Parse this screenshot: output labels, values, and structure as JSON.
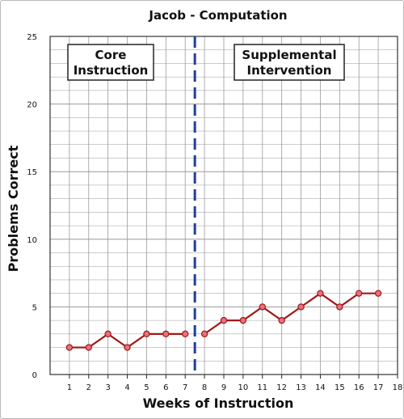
{
  "chart_data": {
    "type": "line",
    "title": "Jacob - Computation",
    "xlabel": "Weeks of Instruction",
    "ylabel": "Problems Correct",
    "xlim": [
      0,
      18
    ],
    "ylim": [
      0,
      25
    ],
    "x_ticks": [
      1,
      2,
      3,
      4,
      5,
      6,
      7,
      8,
      9,
      10,
      11,
      12,
      13,
      14,
      15,
      16,
      17,
      18
    ],
    "y_ticks": [
      0,
      5,
      10,
      15,
      20,
      25
    ],
    "grid": true,
    "phase_line_x": 7.5,
    "phases": [
      {
        "label_lines": [
          "Core",
          "Instruction"
        ],
        "x": [
          1,
          2,
          3,
          4,
          5,
          6,
          7
        ],
        "values": [
          2,
          2,
          3,
          2,
          3,
          3,
          3
        ]
      },
      {
        "label_lines": [
          "Supplemental",
          "Intervention"
        ],
        "x": [
          8,
          9,
          10,
          11,
          12,
          13,
          14,
          15,
          16,
          17
        ],
        "values": [
          3,
          4,
          4,
          5,
          4,
          5,
          6,
          5,
          6,
          6
        ]
      }
    ],
    "colors": {
      "line": "#a01818",
      "marker_fill": "#e8707e",
      "phase_line": "#1f3f9a",
      "grid": "#9a9a9a"
    }
  }
}
